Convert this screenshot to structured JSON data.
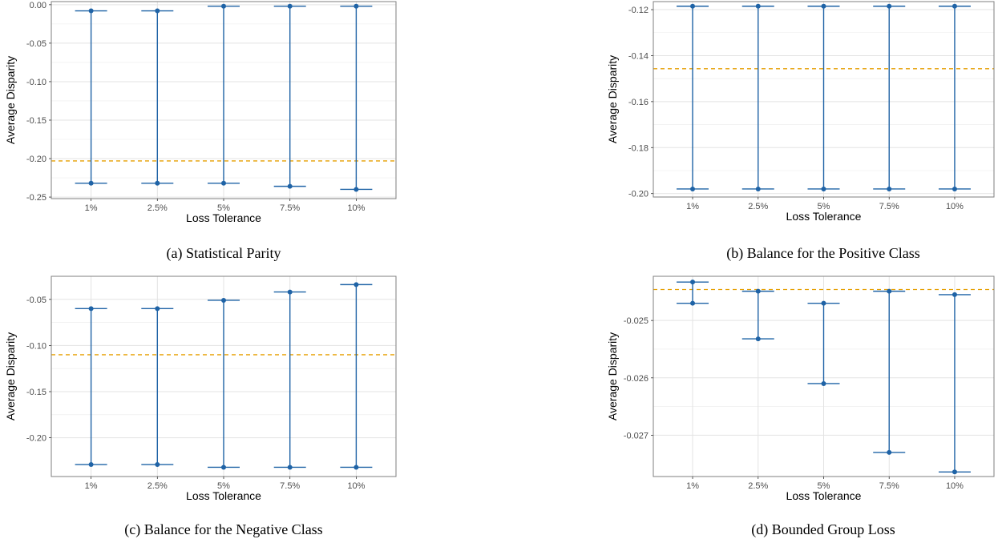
{
  "chart_data": [
    {
      "type": "errorbar",
      "caption": "(a) Statistical Parity",
      "xlabel": "Loss Tolerance",
      "ylabel": "Average Disparity",
      "categories": [
        "1%",
        "2.5%",
        "5%",
        "7.5%",
        "10%"
      ],
      "ylim": [
        -0.252,
        0.004
      ],
      "yticks": [
        0.0,
        -0.05,
        -0.1,
        -0.15,
        -0.2,
        -0.25
      ],
      "ytick_labels": [
        "0.00",
        "-0.05",
        "-0.10",
        "-0.15",
        "-0.20",
        "-0.25"
      ],
      "upper": [
        -0.008,
        -0.008,
        -0.002,
        -0.002,
        -0.002
      ],
      "lower": [
        -0.232,
        -0.232,
        -0.232,
        -0.236,
        -0.24
      ],
      "reference_line": -0.203,
      "grid": true,
      "colors": {
        "bars": "#1f63a6",
        "reference": "#e69f00"
      }
    },
    {
      "type": "errorbar",
      "caption": "(b) Balance for the Positive Class",
      "xlabel": "Loss Tolerance",
      "ylabel": "Average Disparity",
      "categories": [
        "1%",
        "2.5%",
        "5%",
        "7.5%",
        "10%"
      ],
      "ylim": [
        -0.2015,
        -0.1165
      ],
      "yticks": [
        -0.12,
        -0.14,
        -0.16,
        -0.18,
        -0.2
      ],
      "ytick_labels": [
        "-0.12",
        "-0.14",
        "-0.16",
        "-0.18",
        "-0.20"
      ],
      "upper": [
        -0.1185,
        -0.1185,
        -0.1185,
        -0.1185,
        -0.1185
      ],
      "lower": [
        -0.198,
        -0.198,
        -0.198,
        -0.198,
        -0.198
      ],
      "reference_line": -0.1457,
      "grid": true,
      "colors": {
        "bars": "#1f63a6",
        "reference": "#e69f00"
      }
    },
    {
      "type": "errorbar",
      "caption": "(c) Balance for the Negative Class",
      "xlabel": "Loss Tolerance",
      "ylabel": "Average Disparity",
      "categories": [
        "1%",
        "2.5%",
        "5%",
        "7.5%",
        "10%"
      ],
      "ylim": [
        -0.242,
        -0.025
      ],
      "yticks": [
        -0.05,
        -0.1,
        -0.15,
        -0.2
      ],
      "ytick_labels": [
        "-0.05",
        "-0.10",
        "-0.15",
        "-0.20"
      ],
      "upper": [
        -0.06,
        -0.06,
        -0.051,
        -0.042,
        -0.034
      ],
      "lower": [
        -0.229,
        -0.229,
        -0.232,
        -0.232,
        -0.232
      ],
      "reference_line": -0.11,
      "grid": true,
      "colors": {
        "bars": "#1f63a6",
        "reference": "#e69f00"
      }
    },
    {
      "type": "errorbar",
      "caption": "(d) Bounded Group Loss",
      "xlabel": "Loss Tolerance",
      "ylabel": "Average Disparity",
      "categories": [
        "1%",
        "2.5%",
        "5%",
        "7.5%",
        "10%"
      ],
      "ylim": [
        -0.02772,
        -0.02423
      ],
      "yticks": [
        -0.025,
        -0.026,
        -0.027
      ],
      "ytick_labels": [
        "-0.025",
        "-0.026",
        "-0.027"
      ],
      "upper": [
        -0.02433,
        -0.02449,
        -0.0247,
        -0.02449,
        -0.02455
      ],
      "lower": [
        -0.0247,
        -0.02532,
        -0.0261,
        -0.0273,
        -0.02764
      ],
      "reference_line": -0.02446,
      "grid": true,
      "colors": {
        "bars": "#1f63a6",
        "reference": "#e69f00"
      }
    }
  ]
}
